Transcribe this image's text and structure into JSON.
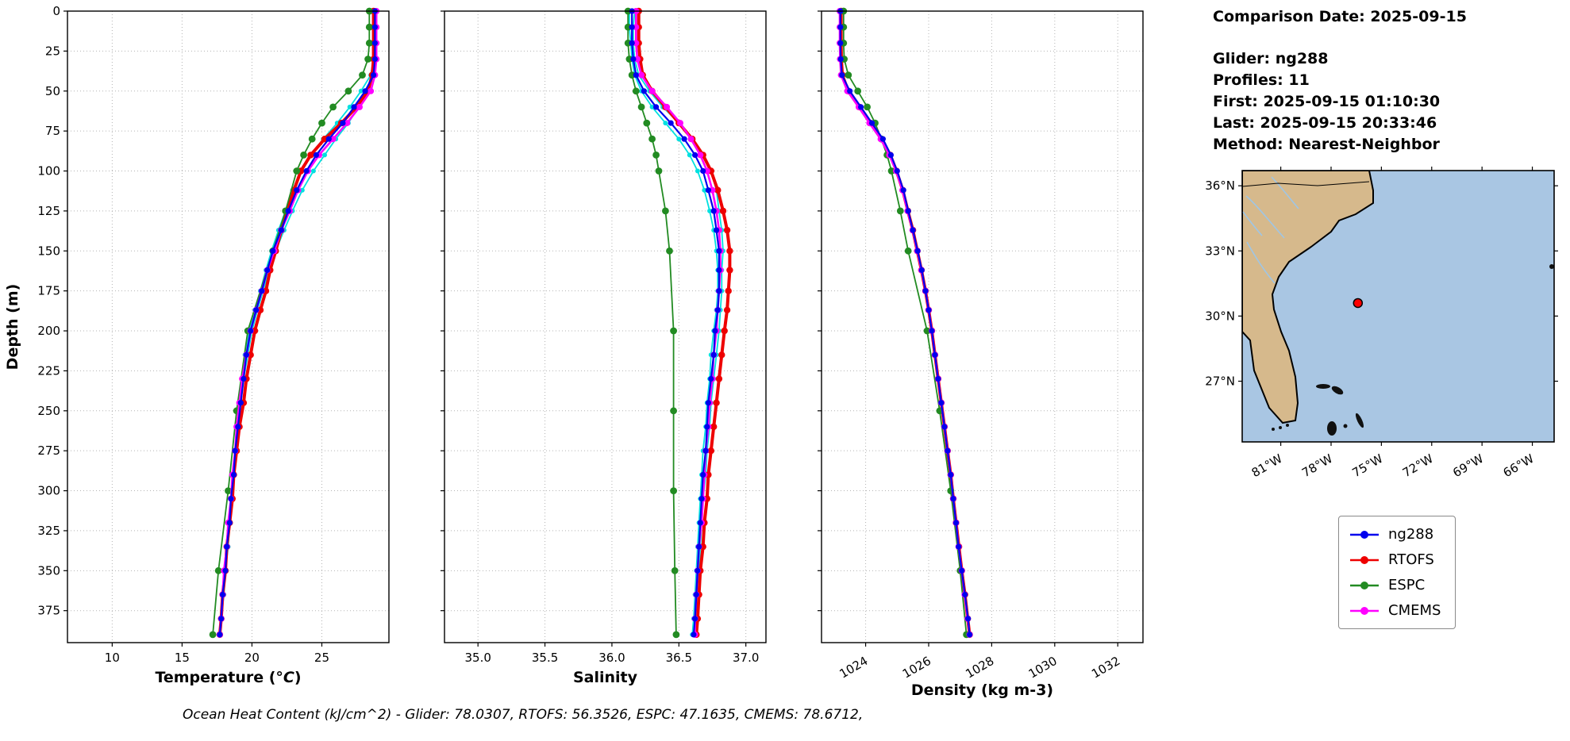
{
  "info_panel": {
    "comparison_date": "Comparison Date: 2025-09-15",
    "glider": "Glider: ng288",
    "profiles": "Profiles: 11",
    "first": "First: 2025-09-15 01:10:30",
    "last": "Last: 2025-09-15 20:33:46",
    "method": "Method: Nearest-Neighbor"
  },
  "footer_text": "Ocean Heat Content (kJ/cm^2) - Glider: 78.0307,  RTOFS: 56.3526,  ESPC: 47.1635,  CMEMS: 78.6712,",
  "legend": {
    "items": [
      {
        "label": "ng288",
        "color": "#0000ee"
      },
      {
        "label": "RTOFS",
        "color": "#ee0000"
      },
      {
        "label": "ESPC",
        "color": "#228b22"
      },
      {
        "label": "CMEMS",
        "color": "#ff00ff"
      }
    ]
  },
  "map": {
    "lon_ticks": [
      "81°W",
      "78°W",
      "75°W",
      "72°W",
      "69°W",
      "66°W"
    ],
    "lat_ticks": [
      "36°N",
      "33°N",
      "30°N",
      "27°N"
    ],
    "marker": {
      "lon": -76.4,
      "lat": 30.6,
      "color": "#ff0000"
    },
    "land_color": "#d6b98c",
    "ocean_color": "#a9c6e3"
  },
  "chart_data": [
    {
      "type": "line",
      "name": "temperature-profile",
      "xlabel": "Temperature (°C)",
      "italic_unit": true,
      "ylabel": "Depth (m)",
      "xlim": [
        6.8,
        29.8
      ],
      "ylim": [
        0,
        395
      ],
      "xticks": [
        10,
        15,
        20,
        25
      ],
      "xtick_labels": [
        "10",
        "15",
        "20",
        "25"
      ],
      "xtick_rotation": 0,
      "yticks": [
        0,
        25,
        50,
        75,
        100,
        125,
        150,
        175,
        200,
        225,
        250,
        275,
        300,
        325,
        350,
        375
      ],
      "depths": [
        0,
        10,
        20,
        30,
        40,
        50,
        60,
        70,
        80,
        90,
        100,
        112,
        125,
        137,
        150,
        162,
        175,
        187,
        200,
        215,
        230,
        245,
        260,
        275,
        290,
        305,
        320,
        335,
        350,
        365,
        380,
        390
      ],
      "series": [
        {
          "name": "glider-profile-a",
          "color": "#00e0e0",
          "values": [
            28.8,
            28.8,
            28.8,
            28.8,
            28.7,
            28.3,
            27.6,
            26.9,
            26.0,
            25.2,
            24.4,
            23.6,
            22.9,
            22.3,
            21.7,
            21.2,
            20.8,
            20.4,
            20.0,
            19.7,
            19.4,
            19.2,
            19.0,
            18.9,
            18.7,
            18.6,
            18.4,
            18.3,
            18.1,
            18.0,
            17.8,
            17.7
          ]
        },
        {
          "name": "glider-profile-b",
          "color": "#00e0e0",
          "values": [
            28.7,
            28.7,
            28.7,
            28.7,
            28.5,
            27.8,
            27.0,
            26.1,
            25.1,
            24.2,
            23.5,
            22.9,
            22.4,
            21.9,
            21.4,
            21.0,
            20.6,
            20.2,
            19.8,
            19.5,
            19.3,
            19.1,
            18.9,
            18.8,
            18.6,
            18.5,
            18.3,
            18.2,
            18.0,
            17.9,
            17.8,
            17.7
          ]
        },
        {
          "name": "RTOFS",
          "color": "#ee0000",
          "values": [
            28.7,
            28.7,
            28.7,
            28.7,
            28.6,
            28.3,
            27.5,
            26.4,
            25.2,
            24.2,
            23.5,
            23.0,
            22.5,
            22.1,
            21.7,
            21.3,
            21.0,
            20.6,
            20.2,
            19.9,
            19.6,
            19.4,
            19.1,
            18.9,
            18.7,
            18.6,
            18.4,
            18.2,
            18.1,
            17.9,
            17.8,
            17.7
          ]
        },
        {
          "name": "ESPC",
          "color": "#228b22",
          "depths": [
            0,
            10,
            20,
            30,
            40,
            50,
            60,
            70,
            80,
            90,
            100,
            125,
            150,
            200,
            250,
            300,
            350,
            390
          ],
          "values": [
            28.4,
            28.4,
            28.4,
            28.3,
            27.9,
            26.9,
            25.8,
            25.0,
            24.3,
            23.7,
            23.2,
            22.4,
            21.5,
            19.7,
            18.9,
            18.3,
            17.6,
            17.2
          ]
        },
        {
          "name": "CMEMS",
          "color": "#ff00ff",
          "values": [
            28.9,
            28.9,
            28.9,
            28.9,
            28.8,
            28.5,
            27.7,
            26.8,
            25.8,
            24.8,
            24.0,
            23.3,
            22.7,
            22.1,
            21.6,
            21.1,
            20.7,
            20.3,
            19.9,
            19.6,
            19.3,
            19.1,
            18.9,
            18.8,
            18.6,
            18.5,
            18.3,
            18.2,
            18.0,
            17.9,
            17.8,
            17.7
          ]
        },
        {
          "name": "ng288",
          "color": "#0000ee",
          "values": [
            28.8,
            28.8,
            28.8,
            28.8,
            28.7,
            28.1,
            27.3,
            26.5,
            25.5,
            24.6,
            23.9,
            23.2,
            22.6,
            22.1,
            21.5,
            21.1,
            20.7,
            20.3,
            19.9,
            19.6,
            19.4,
            19.2,
            19.0,
            18.8,
            18.7,
            18.5,
            18.4,
            18.2,
            18.1,
            17.9,
            17.8,
            17.7
          ]
        }
      ]
    },
    {
      "type": "line",
      "name": "salinity-profile",
      "xlabel": "Salinity",
      "italic_unit": false,
      "ylabel": "Depth (m)",
      "xlim": [
        34.75,
        37.15
      ],
      "ylim": [
        0,
        395
      ],
      "xticks": [
        35.0,
        35.5,
        36.0,
        36.5,
        37.0
      ],
      "xtick_labels": [
        "35.0",
        "35.5",
        "36.0",
        "36.5",
        "37.0"
      ],
      "xtick_rotation": 0,
      "yticks": [
        0,
        25,
        50,
        75,
        100,
        125,
        150,
        175,
        200,
        225,
        250,
        275,
        300,
        325,
        350,
        375
      ],
      "depths": [
        0,
        10,
        20,
        30,
        40,
        50,
        60,
        70,
        80,
        90,
        100,
        112,
        125,
        137,
        150,
        162,
        175,
        187,
        200,
        215,
        230,
        245,
        260,
        275,
        290,
        305,
        320,
        335,
        350,
        365,
        380,
        390
      ],
      "series": [
        {
          "name": "glider-profile-a",
          "color": "#00e0e0",
          "values": [
            36.17,
            36.16,
            36.16,
            36.17,
            36.2,
            36.28,
            36.38,
            36.5,
            36.6,
            36.68,
            36.74,
            36.78,
            36.8,
            36.82,
            36.83,
            36.82,
            36.82,
            36.81,
            36.8,
            36.78,
            36.76,
            36.74,
            36.73,
            36.71,
            36.7,
            36.68,
            36.67,
            36.66,
            36.65,
            36.64,
            36.63,
            36.62
          ]
        },
        {
          "name": "glider-profile-b",
          "color": "#00e0e0",
          "values": [
            36.13,
            36.13,
            36.14,
            36.15,
            36.17,
            36.22,
            36.3,
            36.4,
            36.5,
            36.58,
            36.64,
            36.69,
            36.73,
            36.76,
            36.78,
            36.79,
            36.79,
            36.78,
            36.76,
            36.74,
            36.73,
            36.71,
            36.7,
            36.68,
            36.67,
            36.66,
            36.65,
            36.64,
            36.63,
            36.62,
            36.61,
            36.6
          ]
        },
        {
          "name": "RTOFS",
          "color": "#ee0000",
          "values": [
            36.2,
            36.2,
            36.2,
            36.21,
            36.23,
            36.3,
            36.4,
            36.5,
            36.6,
            36.68,
            36.74,
            36.79,
            36.83,
            36.86,
            36.88,
            36.88,
            36.87,
            36.86,
            36.84,
            36.82,
            36.8,
            36.78,
            36.76,
            36.74,
            36.72,
            36.71,
            36.69,
            36.68,
            36.66,
            36.65,
            36.64,
            36.63
          ]
        },
        {
          "name": "ESPC",
          "color": "#228b22",
          "depths": [
            0,
            10,
            20,
            30,
            40,
            50,
            60,
            70,
            80,
            90,
            100,
            125,
            150,
            200,
            250,
            300,
            350,
            390
          ],
          "values": [
            36.12,
            36.12,
            36.12,
            36.13,
            36.15,
            36.18,
            36.22,
            36.26,
            36.3,
            36.33,
            36.35,
            36.4,
            36.43,
            36.46,
            36.46,
            36.46,
            36.47,
            36.48
          ]
        },
        {
          "name": "CMEMS",
          "color": "#ff00ff",
          "values": [
            36.18,
            36.18,
            36.18,
            36.19,
            36.22,
            36.3,
            36.41,
            36.51,
            36.59,
            36.66,
            36.71,
            36.75,
            36.78,
            36.8,
            36.81,
            36.81,
            36.8,
            36.79,
            36.78,
            36.76,
            36.75,
            36.73,
            36.72,
            36.7,
            36.69,
            36.68,
            36.67,
            36.65,
            36.64,
            36.63,
            36.62,
            36.62
          ]
        },
        {
          "name": "ng288",
          "color": "#0000ee",
          "values": [
            36.15,
            36.15,
            36.15,
            36.16,
            36.18,
            36.24,
            36.33,
            36.44,
            36.54,
            36.62,
            36.68,
            36.72,
            36.76,
            36.78,
            36.8,
            36.8,
            36.8,
            36.79,
            36.77,
            36.76,
            36.74,
            36.72,
            36.71,
            36.7,
            36.68,
            36.67,
            36.66,
            36.65,
            36.64,
            36.63,
            36.62,
            36.61
          ]
        }
      ]
    },
    {
      "type": "line",
      "name": "density-profile",
      "xlabel": "Density (kg m-3)",
      "italic_unit": false,
      "ylabel": "Depth (m)",
      "xlim": [
        1022.6,
        1032.8
      ],
      "ylim": [
        0,
        395
      ],
      "xticks": [
        1024,
        1026,
        1028,
        1030,
        1032
      ],
      "xtick_labels": [
        "1024",
        "1026",
        "1028",
        "1030",
        "1032"
      ],
      "xtick_rotation": 30,
      "yticks": [
        0,
        25,
        50,
        75,
        100,
        125,
        150,
        175,
        200,
        225,
        250,
        275,
        300,
        325,
        350,
        375
      ],
      "depths": [
        0,
        10,
        20,
        30,
        40,
        50,
        60,
        70,
        80,
        90,
        100,
        112,
        125,
        137,
        150,
        162,
        175,
        187,
        200,
        215,
        230,
        245,
        260,
        275,
        290,
        305,
        320,
        335,
        350,
        365,
        380,
        390
      ],
      "series": [
        {
          "name": "glider-profile-a",
          "color": "#00e0e0",
          "values": [
            1023.18,
            1023.18,
            1023.19,
            1023.2,
            1023.24,
            1023.48,
            1023.82,
            1024.17,
            1024.52,
            1024.78,
            1024.98,
            1025.18,
            1025.34,
            1025.49,
            1025.64,
            1025.77,
            1025.89,
            1025.99,
            1026.09,
            1026.19,
            1026.29,
            1026.39,
            1026.49,
            1026.59,
            1026.69,
            1026.77,
            1026.86,
            1026.94,
            1027.04,
            1027.14,
            1027.24,
            1027.29
          ]
        },
        {
          "name": "RTOFS",
          "color": "#ee0000",
          "values": [
            1023.22,
            1023.22,
            1023.22,
            1023.23,
            1023.26,
            1023.45,
            1023.8,
            1024.15,
            1024.5,
            1024.78,
            1024.98,
            1025.18,
            1025.34,
            1025.5,
            1025.64,
            1025.77,
            1025.9,
            1026.0,
            1026.1,
            1026.2,
            1026.3,
            1026.4,
            1026.5,
            1026.6,
            1026.7,
            1026.78,
            1026.87,
            1026.96,
            1027.05,
            1027.15,
            1027.24,
            1027.3
          ]
        },
        {
          "name": "ESPC",
          "color": "#228b22",
          "depths": [
            0,
            10,
            20,
            30,
            40,
            50,
            60,
            70,
            80,
            90,
            100,
            125,
            150,
            200,
            250,
            300,
            350,
            390
          ],
          "values": [
            1023.3,
            1023.3,
            1023.3,
            1023.32,
            1023.45,
            1023.75,
            1024.05,
            1024.3,
            1024.5,
            1024.68,
            1024.82,
            1025.1,
            1025.35,
            1025.95,
            1026.35,
            1026.7,
            1027.0,
            1027.2
          ]
        },
        {
          "name": "CMEMS",
          "color": "#ff00ff",
          "values": [
            1023.18,
            1023.18,
            1023.18,
            1023.19,
            1023.22,
            1023.42,
            1023.78,
            1024.12,
            1024.48,
            1024.75,
            1024.97,
            1025.17,
            1025.33,
            1025.49,
            1025.64,
            1025.77,
            1025.9,
            1026.0,
            1026.1,
            1026.2,
            1026.3,
            1026.4,
            1026.5,
            1026.6,
            1026.7,
            1026.78,
            1026.87,
            1026.95,
            1027.05,
            1027.14,
            1027.24,
            1027.3
          ]
        },
        {
          "name": "ng288",
          "color": "#0000ee",
          "values": [
            1023.2,
            1023.2,
            1023.2,
            1023.21,
            1023.25,
            1023.5,
            1023.85,
            1024.2,
            1024.55,
            1024.8,
            1025.0,
            1025.2,
            1025.35,
            1025.5,
            1025.65,
            1025.78,
            1025.9,
            1026.0,
            1026.1,
            1026.2,
            1026.3,
            1026.4,
            1026.5,
            1026.6,
            1026.7,
            1026.78,
            1026.87,
            1026.95,
            1027.05,
            1027.15,
            1027.25,
            1027.3
          ]
        }
      ]
    }
  ]
}
